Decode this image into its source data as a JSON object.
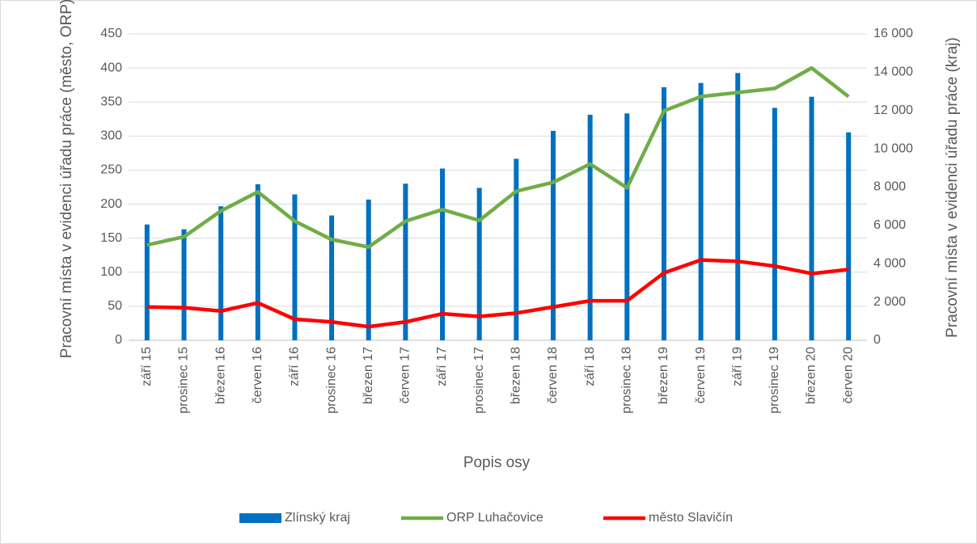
{
  "chart_data": {
    "type": "bar-line",
    "x_label": "Popis osy",
    "y_label": "Pracovní místa v evidenci úřadu práce (město, ORP)",
    "y2_label": "Pracovní místa v evidenci úřadu práce (kraj)",
    "categories": [
      "září 15",
      "prosinec 15",
      "březen 16",
      "červen 16",
      "září 16",
      "prosinec 16",
      "březen 17",
      "červen 17",
      "září 17",
      "prosinec 17",
      "březen 18",
      "červen 18",
      "září 18",
      "prosinec 18",
      "březen 19",
      "červen 19",
      "září 19",
      "prosinec 19",
      "březen 20",
      "červen 20"
    ],
    "series": [
      {
        "name": "Zlínský kraj",
        "type": "bar",
        "axis": "y2",
        "color": "#0070c0",
        "values": [
          6050,
          5800,
          7000,
          8150,
          7620,
          6520,
          7350,
          8180,
          8970,
          7960,
          9480,
          10940,
          11780,
          11850,
          13220,
          13440,
          13960,
          12140,
          12720,
          10860
        ]
      },
      {
        "name": "ORP Luhačovice",
        "type": "line",
        "color": "#70ad47",
        "values": [
          140,
          152,
          190,
          218,
          175,
          148,
          137,
          175,
          192,
          176,
          219,
          232,
          259,
          224,
          337,
          358,
          364,
          370,
          400,
          358
        ]
      },
      {
        "name": "město Slavičín",
        "type": "line",
        "color": "#ff0000",
        "values": [
          49,
          48,
          43,
          55,
          31,
          27,
          20,
          27,
          39,
          35,
          40,
          49,
          58,
          58,
          99,
          118,
          116,
          109,
          98,
          104
        ]
      }
    ],
    "ylim": [
      0,
      450
    ],
    "yticks": [
      0,
      50,
      100,
      150,
      200,
      250,
      300,
      350,
      400,
      450
    ],
    "y2lim": [
      0,
      16000
    ],
    "y2ticks": [
      0,
      {
        "value": 2000,
        "label": "2 000"
      },
      {
        "value": 4000,
        "label": "4 000"
      },
      {
        "value": 6000,
        "label": "6 000"
      },
      {
        "value": 8000,
        "label": "8 000"
      },
      {
        "value": 10000,
        "label": "10 000"
      },
      {
        "value": 12000,
        "label": "12 000"
      },
      {
        "value": 14000,
        "label": "14 000"
      },
      {
        "value": 16000,
        "label": "16 000"
      }
    ],
    "grid": true,
    "legend": "bottom"
  }
}
